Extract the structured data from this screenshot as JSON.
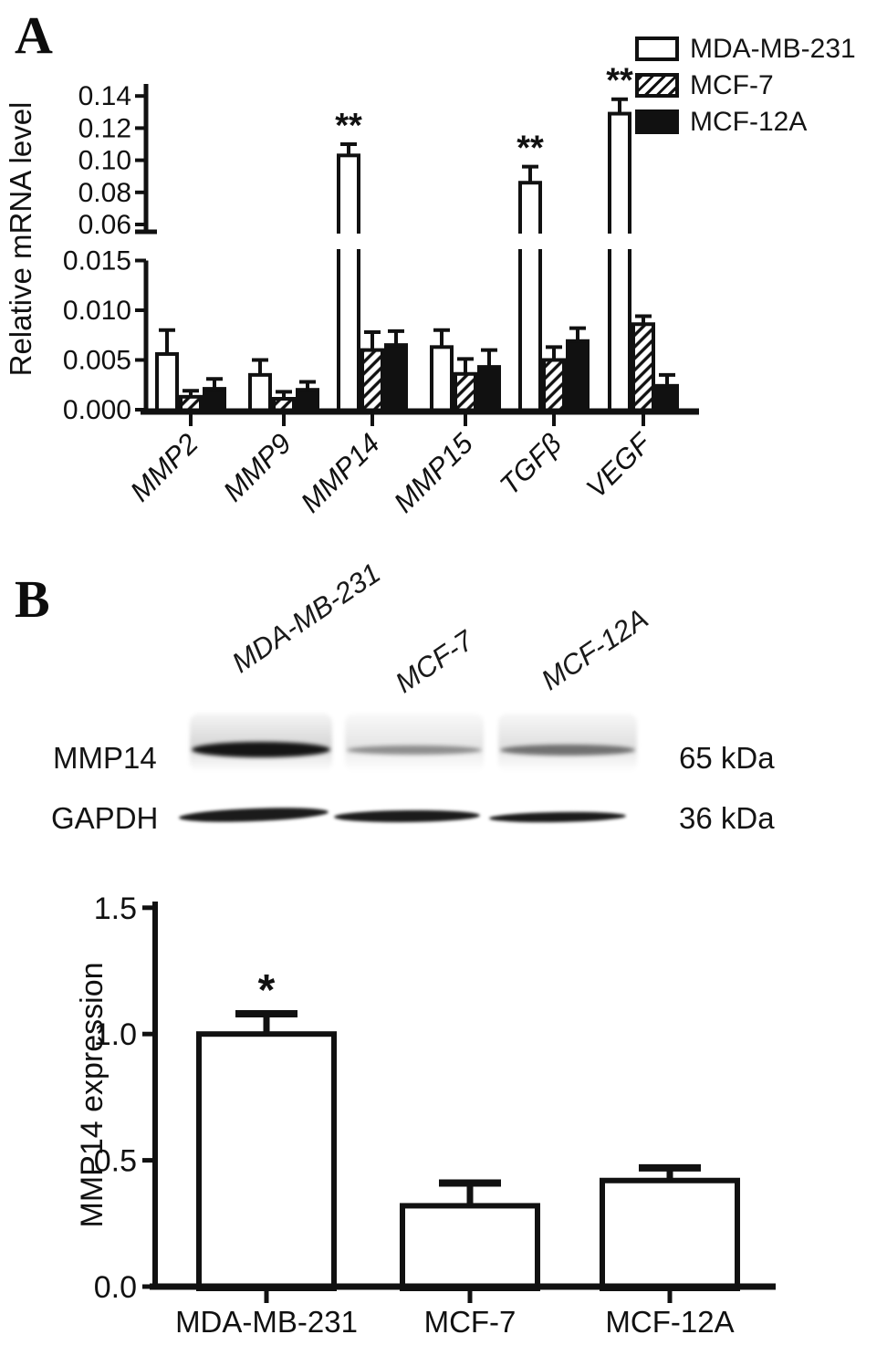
{
  "panels": {
    "a_label": "A",
    "b_label": "B"
  },
  "legend": {
    "entries": [
      {
        "label": "MDA-MB-231",
        "swatch": "white"
      },
      {
        "label": "MCF-7",
        "swatch": "hatch"
      },
      {
        "label": "MCF-12A",
        "swatch": "black"
      }
    ]
  },
  "chart_data": [
    {
      "id": "relative-mrna-level",
      "type": "bar",
      "title": "",
      "ylabel": "Relative mRNA level",
      "xlabel": "",
      "categories": [
        "MMP2",
        "MMP9",
        "MMP14",
        "MMP15",
        "TGFβ",
        "VEGF"
      ],
      "series": [
        {
          "name": "MDA-MB-231",
          "fill": "white",
          "values": [
            0.0056,
            0.0035,
            0.103,
            0.0063,
            0.086,
            0.129
          ],
          "errors": [
            0.0024,
            0.0015,
            0.007,
            0.0017,
            0.01,
            0.009
          ],
          "significance": [
            "",
            "",
            "**",
            "",
            "**",
            "**"
          ]
        },
        {
          "name": "MCF-7",
          "fill": "hatch",
          "values": [
            0.0013,
            0.0011,
            0.006,
            0.0036,
            0.005,
            0.0086
          ],
          "errors": [
            0.0006,
            0.0007,
            0.0018,
            0.0015,
            0.0013,
            0.0008
          ],
          "significance": [
            "",
            "",
            "",
            "",
            "",
            ""
          ]
        },
        {
          "name": "MCF-12A",
          "fill": "black",
          "values": [
            0.0021,
            0.002,
            0.0065,
            0.0043,
            0.0069,
            0.0024
          ],
          "errors": [
            0.001,
            0.0008,
            0.0014,
            0.0017,
            0.0013,
            0.0011
          ],
          "significance": [
            "",
            "",
            "",
            "",
            "",
            ""
          ]
        }
      ],
      "axis_break": true,
      "lower_axis": {
        "range": [
          0,
          0.015
        ],
        "ticks": [
          {
            "v": 0,
            "label": "0.000"
          },
          {
            "v": 0.005,
            "label": "0.005"
          },
          {
            "v": 0.01,
            "label": "0.010"
          },
          {
            "v": 0.015,
            "label": "0.015"
          }
        ]
      },
      "upper_axis": {
        "range": [
          0.06,
          0.145
        ],
        "ticks": [
          {
            "v": 0.06,
            "label": "0.06"
          },
          {
            "v": 0.08,
            "label": "0.08"
          },
          {
            "v": 0.1,
            "label": "0.10"
          },
          {
            "v": 0.12,
            "label": "0.12"
          },
          {
            "v": 0.14,
            "label": "0.14"
          }
        ]
      },
      "legend_position": "top-right",
      "grid": false,
      "bar_color": "#111111",
      "background": "#ffffff"
    },
    {
      "id": "mmp14-expression",
      "type": "bar",
      "title": "",
      "ylabel": "MMP14 expression",
      "xlabel": "",
      "categories": [
        "MDA-MB-231",
        "MCF-7",
        "MCF-12A"
      ],
      "values": [
        1.0,
        0.32,
        0.42
      ],
      "errors": [
        0.08,
        0.09,
        0.05
      ],
      "significance": [
        "*",
        "",
        ""
      ],
      "ylim": [
        0,
        1.5
      ],
      "yticks": [
        {
          "v": 0,
          "label": "0.0"
        },
        {
          "v": 0.5,
          "label": "0.5"
        },
        {
          "v": 1.0,
          "label": "1.0"
        },
        {
          "v": 1.5,
          "label": "1.5"
        }
      ],
      "grid": false,
      "bar_fill": "white",
      "background": "#ffffff"
    }
  ],
  "blot": {
    "lanes": [
      "MDA-MB-231",
      "MCF-7",
      "MCF-12A"
    ],
    "rows": [
      {
        "label": "MMP14",
        "size_label": "65 kDa",
        "bands": [
          "strong",
          "weak",
          "medium"
        ]
      },
      {
        "label": "GAPDH",
        "size_label": "36 kDa",
        "bands": [
          "strong",
          "strong",
          "strong"
        ]
      }
    ]
  }
}
